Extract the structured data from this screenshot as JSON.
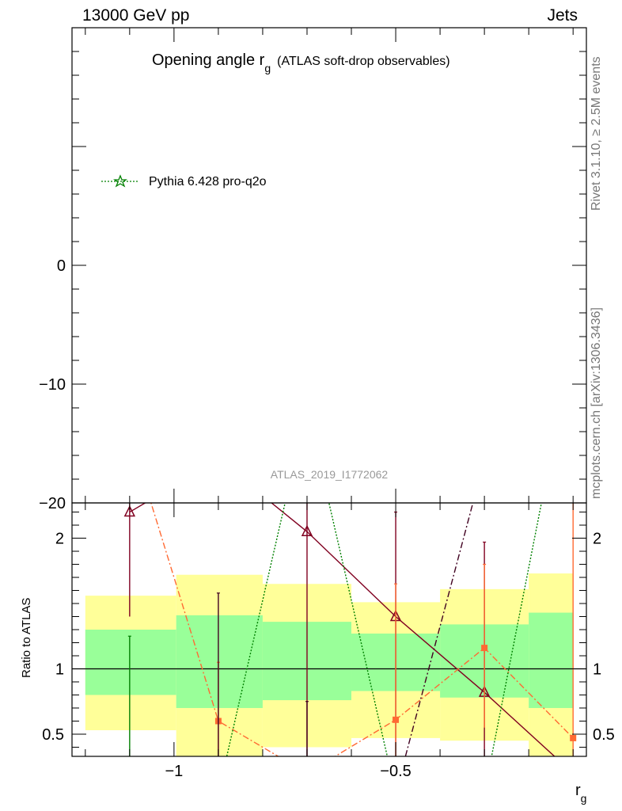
{
  "header": {
    "left": "13000 GeV pp",
    "right": "Jets"
  },
  "side": {
    "top": "Rivet 3.1.10, ≥ 2.5M events",
    "bottom": "mcplots.cern.ch [arXiv:1306.3436]"
  },
  "chart_data": {
    "type": "line",
    "title_main": "Opening angle r",
    "title_sub": "g",
    "title_note": "(ATLAS soft-drop observables)",
    "watermark": "ATLAS_2019_I1772062",
    "legend": [
      {
        "name": "Pythia 6.428 pro-q2o",
        "color": "#008000",
        "marker": "star",
        "dash": "dotted"
      }
    ],
    "xlabel_main": "r",
    "xlabel_sub": "g",
    "xlim": [
      -1.23,
      -0.07
    ],
    "xticks": [
      -1,
      -0.5
    ],
    "xtick_labels": [
      "−1",
      "−0.5"
    ],
    "upper": {
      "ylim": [
        -20,
        20
      ],
      "yticks": [
        0,
        -10,
        -20
      ],
      "ytick_labels": [
        "0",
        "−10",
        "−20"
      ]
    },
    "ratio": {
      "ylabel": "Ratio to ATLAS",
      "ylim": [
        0.33,
        2.27
      ],
      "yticks": [
        2,
        1,
        0.5
      ],
      "ytick_labels": [
        "2",
        "1",
        "0.5"
      ],
      "bands": [
        {
          "x0": -1.2,
          "x1": -0.995,
          "green": [
            0.8,
            1.3
          ],
          "yellow": [
            0.53,
            1.56
          ]
        },
        {
          "x0": -0.995,
          "x1": -0.8,
          "green": [
            0.7,
            1.41
          ],
          "yellow": [
            0.33,
            1.72
          ]
        },
        {
          "x0": -0.8,
          "x1": -0.6,
          "green": [
            0.76,
            1.36
          ],
          "yellow": [
            0.4,
            1.65
          ]
        },
        {
          "x0": -0.6,
          "x1": -0.4,
          "green": [
            0.83,
            1.27
          ],
          "yellow": [
            0.47,
            1.51
          ]
        },
        {
          "x0": -0.4,
          "x1": -0.2,
          "green": [
            0.78,
            1.34
          ],
          "yellow": [
            0.45,
            1.61
          ]
        },
        {
          "x0": -0.2,
          "x1": -0.1,
          "green": [
            0.7,
            1.43
          ],
          "yellow": [
            0.33,
            1.73
          ]
        }
      ],
      "series": [
        {
          "color": "#800020",
          "dash": "solid",
          "marker": "triangle",
          "x": [
            -1.1,
            -0.9,
            -0.7,
            -0.5,
            -0.3,
            -0.1
          ],
          "y": [
            2.2,
            2.6,
            2.05,
            1.4,
            0.82,
            0.2
          ],
          "err": [
            [
              1.4,
              2.3
            ],
            null,
            [
              0.33,
              2.3
            ],
            [
              0.33,
              2.2
            ],
            [
              0.33,
              1.97
            ],
            null
          ]
        },
        {
          "color": "#ff6a33",
          "dash": "dashdot",
          "marker": "square",
          "x": [
            -1.1,
            -0.9,
            -0.7,
            -0.5,
            -0.3,
            -0.1
          ],
          "y": [
            2.8,
            0.6,
            0.2,
            0.61,
            1.16,
            0.47
          ],
          "err": [
            null,
            [
              0.33,
              1.05
            ],
            null,
            [
              0.33,
              1.65
            ],
            [
              0.55,
              1.8
            ],
            [
              0.33,
              2.3
            ]
          ]
        },
        {
          "color": "#008000",
          "dash": "dotted",
          "marker": "none",
          "x": [
            -1.1,
            -0.9,
            -0.7,
            -0.5,
            -0.3,
            -0.1
          ],
          "y": [
            0.1,
            0.05,
            3.0,
            0.05,
            0.05,
            3.5
          ],
          "err": [
            [
              0.33,
              1.25
            ],
            null,
            null,
            null,
            null,
            null
          ]
        },
        {
          "color": "#400020",
          "dash": "dashdot",
          "marker": "none",
          "x": [
            -0.9,
            -0.7,
            -0.5,
            -0.3
          ],
          "y": [
            0.05,
            0.05,
            0.05,
            2.6
          ],
          "err": [
            [
              0.33,
              1.58
            ],
            [
              0.33,
              0.75
            ],
            null,
            null
          ]
        }
      ]
    }
  }
}
